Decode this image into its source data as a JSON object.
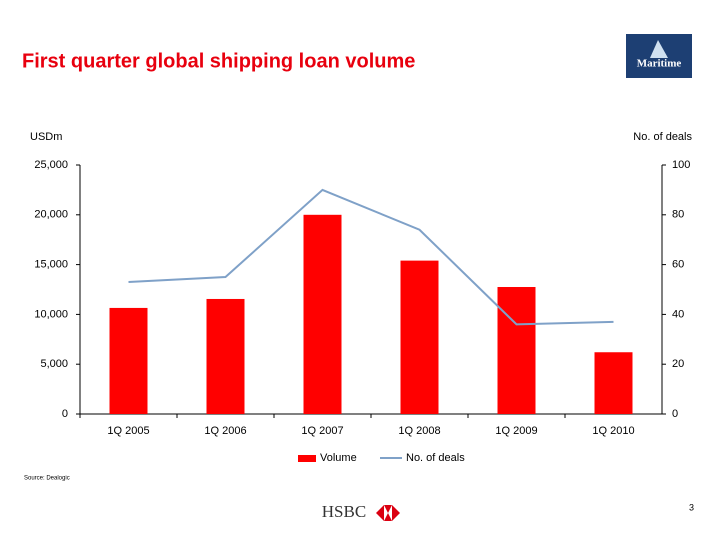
{
  "logo": "Maritime",
  "footer_logo": "HSBC",
  "page_number": 3,
  "chart_data": {
    "type": "bar",
    "title": "First quarter global shipping loan volume",
    "y_label": "USDm",
    "y2_label": "No. of deals",
    "source": "Source: Dealogic",
    "categories": [
      "1Q 2005",
      "1Q 2006",
      "1Q 2007",
      "1Q 2008",
      "1Q 2009",
      "1Q 2010"
    ],
    "series": [
      {
        "name": "Volume",
        "type": "bar",
        "color": "#ff0000",
        "values": [
          10650,
          11550,
          20000,
          15400,
          12750,
          6200
        ]
      },
      {
        "name": "No. of deals",
        "type": "line",
        "axis": "y2",
        "color": "#7fa1c8",
        "values": [
          53,
          55,
          90,
          74,
          36,
          37
        ]
      }
    ],
    "ylim": [
      0,
      25000
    ],
    "yticks": [
      0,
      {
        "value": 5000,
        "label": "5,000"
      },
      {
        "value": 10000,
        "label": "10,000"
      },
      {
        "value": 15000,
        "label": "15,000"
      },
      {
        "value": 20000,
        "label": "20,000"
      },
      {
        "value": 25000,
        "label": "25,000"
      }
    ],
    "y2lim": [
      0,
      100
    ],
    "y2ticks": [
      0,
      20,
      40,
      60,
      80,
      100
    ]
  }
}
